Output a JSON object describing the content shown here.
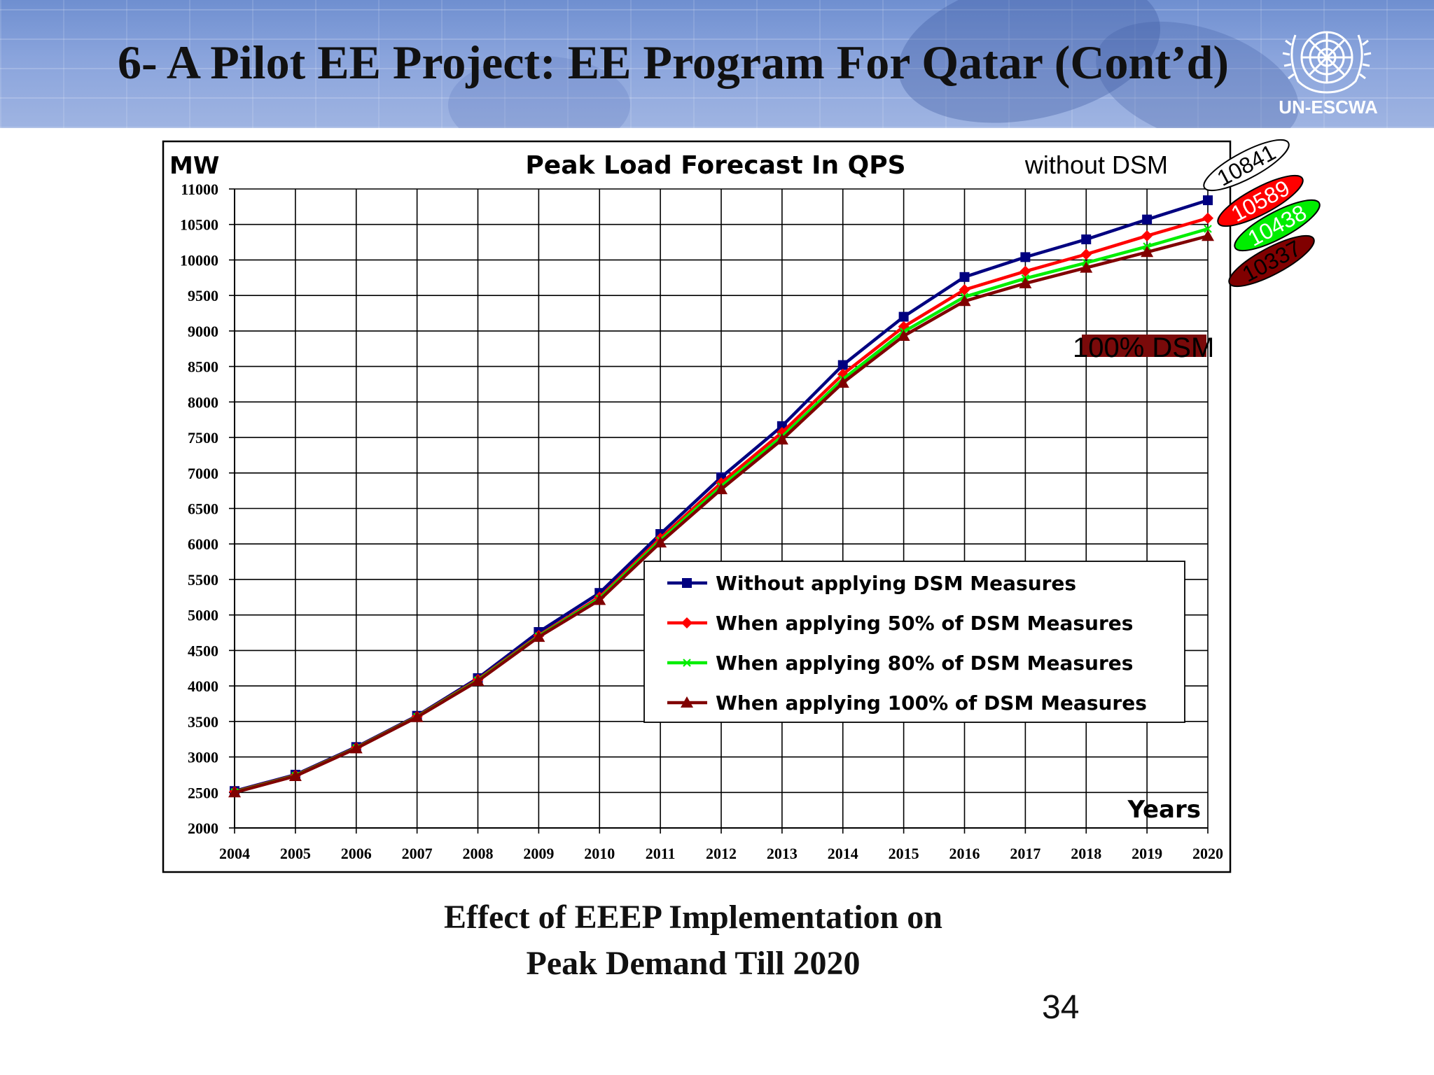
{
  "slide": {
    "title": "6-  A Pilot EE Project: EE Program For Qatar (Cont’d)",
    "logo_text": "UN-ESCWA",
    "caption_line1": "Effect of EEEP Implementation on",
    "caption_line2": "Peak Demand Till 2020",
    "page_number": "34"
  },
  "chart_data": {
    "type": "line",
    "title": "Peak Load Forecast In QPS",
    "ylabel": "MW",
    "xlabel": "Years",
    "ylim": [
      2000,
      11000
    ],
    "ytick_step": 500,
    "grid": true,
    "legend_position": "center-right",
    "categories": [
      "2004",
      "2005",
      "2006",
      "2007",
      "2008",
      "2009",
      "2010",
      "2011",
      "2012",
      "2013",
      "2014",
      "2015",
      "2016",
      "2017",
      "2018",
      "2019",
      "2020"
    ],
    "series": [
      {
        "name": "Without applying DSM Measures",
        "color": "#000080",
        "marker": "square",
        "values": [
          2520,
          2750,
          3140,
          3580,
          4110,
          4760,
          5310,
          6140,
          6940,
          7660,
          8520,
          9200,
          9760,
          10040,
          10290,
          10570,
          10841
        ]
      },
      {
        "name": "When applying 50%  of DSM Measures",
        "color": "#ff0000",
        "marker": "diamond",
        "values": [
          2510,
          2740,
          3130,
          3570,
          4090,
          4710,
          5250,
          6080,
          6860,
          7570,
          8390,
          9060,
          9580,
          9840,
          10080,
          10340,
          10589
        ]
      },
      {
        "name": "When applying 80%  of DSM Measures",
        "color": "#00ee00",
        "marker": "x",
        "values": [
          2505,
          2735,
          3125,
          3565,
          4080,
          4700,
          5230,
          6050,
          6810,
          7510,
          8320,
          8990,
          9480,
          9740,
          9960,
          10190,
          10438
        ]
      },
      {
        "name": "When applying 100%  of DSM Measures",
        "color": "#800000",
        "marker": "triangle",
        "values": [
          2500,
          2730,
          3120,
          3560,
          4070,
          4690,
          5210,
          6020,
          6770,
          7470,
          8270,
          8930,
          9420,
          9670,
          9890,
          10110,
          10337
        ]
      }
    ],
    "annotations": {
      "without_dsm_label": "without DSM",
      "full_dsm_label": "100% DSM",
      "end_labels": [
        {
          "text": "10841",
          "fill": "#ffffff",
          "text_color": "#000000"
        },
        {
          "text": "10589",
          "fill": "#ff0000",
          "text_color": "#ffffff"
        },
        {
          "text": "10438",
          "fill": "#00ee00",
          "text_color": "#ffffff"
        },
        {
          "text": "10337",
          "fill": "#800000",
          "text_color": "#000000"
        }
      ]
    }
  }
}
